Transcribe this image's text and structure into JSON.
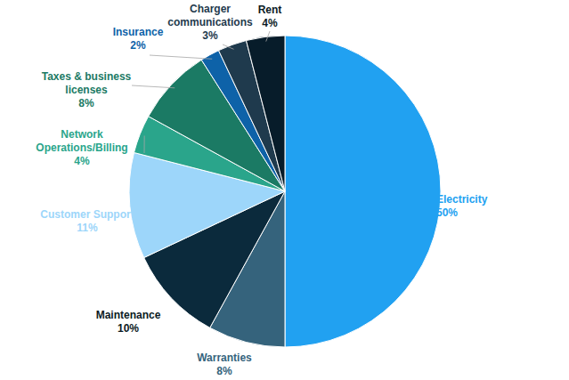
{
  "chart_data": {
    "type": "pie",
    "categories": [
      "Electricity",
      "Warranties",
      "Maintenance",
      "Customer Support",
      "Network Operations/Billing",
      "Taxes & business licenses",
      "Insurance",
      "Charger communications",
      "Rent"
    ],
    "values": [
      50,
      8,
      10,
      11,
      4,
      8,
      2,
      3,
      4
    ],
    "value_labels": [
      "50%",
      "8%",
      "10%",
      "11%",
      "4%",
      "8%",
      "2%",
      "3%",
      "4%"
    ],
    "colors": [
      "#21a1f1",
      "#35637c",
      "#0b2a3c",
      "#9dd6fa",
      "#2aa58b",
      "#1b7a64",
      "#0e62a8",
      "#1f3a4d",
      "#071c2a"
    ],
    "data_labels": true
  }
}
